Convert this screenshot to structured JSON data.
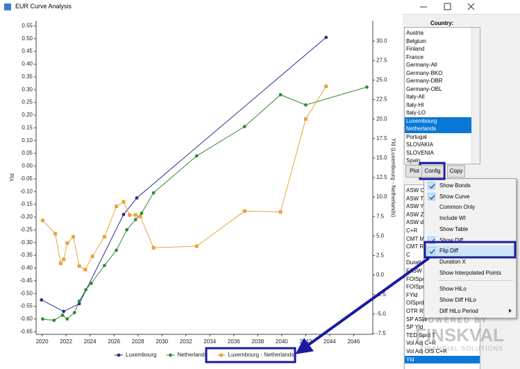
{
  "window": {
    "title": "EUR Curve Analysis"
  },
  "chart_data": {
    "type": "line",
    "ylabel": "Yld",
    "y2label": "Yld (Luxembourg - Netherlands)",
    "xlim": [
      2019.5,
      2047.6
    ],
    "xticks": [
      2020,
      2022,
      2024,
      2026,
      2028,
      2030,
      2032,
      2034,
      2036,
      2038,
      2040,
      2042,
      2044,
      2046
    ],
    "ylim": [
      -0.66,
      0.57
    ],
    "yticks": [
      {
        "value": 0.55,
        "label": "0.55"
      },
      {
        "value": 0.5,
        "label": "0.50"
      },
      {
        "value": 0.45,
        "label": "0.45"
      },
      {
        "value": 0.4,
        "label": "0.40"
      },
      {
        "value": 0.35,
        "label": "0.35"
      },
      {
        "value": 0.3,
        "label": "0.30"
      },
      {
        "value": 0.25,
        "label": "0.25"
      },
      {
        "value": 0.2,
        "label": "0.20"
      },
      {
        "value": 0.15,
        "label": "0.15"
      },
      {
        "value": 0.1,
        "label": "0.10"
      },
      {
        "value": 0.05,
        "label": "0.05"
      },
      {
        "value": 0,
        "label": "0.00"
      },
      {
        "value": -0.05,
        "label": "-0.05"
      },
      {
        "value": -0.1,
        "label": "-0.10"
      },
      {
        "value": -0.15,
        "label": "-0.15"
      },
      {
        "value": -0.2,
        "label": "-0.20"
      },
      {
        "value": -0.25,
        "label": "-0.25"
      },
      {
        "value": -0.3,
        "label": "-0.30"
      },
      {
        "value": -0.35,
        "label": "-0.35"
      },
      {
        "value": -0.4,
        "label": "-0.40"
      },
      {
        "value": -0.45,
        "label": "-0.45"
      },
      {
        "value": -0.5,
        "label": "-0.50"
      },
      {
        "value": -0.55,
        "label": "-0.55"
      },
      {
        "value": -0.6,
        "label": "-0.60"
      },
      {
        "value": -0.65,
        "label": "-0.65"
      }
    ],
    "y2lim": [
      -7.6,
      32.6
    ],
    "y2ticks": [
      {
        "value": 30,
        "label": "30.0"
      },
      {
        "value": 27.5,
        "label": "27.5"
      },
      {
        "value": 25,
        "label": "25.0"
      },
      {
        "value": 22.5,
        "label": "22.5"
      },
      {
        "value": 20,
        "label": "20.0"
      },
      {
        "value": 17.5,
        "label": "17.5"
      },
      {
        "value": 15,
        "label": "15.0"
      },
      {
        "value": 12.5,
        "label": "12.5"
      },
      {
        "value": 10,
        "label": "10.0"
      },
      {
        "value": 7.5,
        "label": "7.5"
      },
      {
        "value": 5,
        "label": "5.0"
      },
      {
        "value": 2.5,
        "label": "2.5"
      },
      {
        "value": 0,
        "label": "0.0"
      },
      {
        "value": -2.5,
        "label": "-2.5"
      },
      {
        "value": -5,
        "label": "-5.0"
      },
      {
        "value": -7.5,
        "label": "-7.5"
      }
    ],
    "grid": false,
    "legend": "bottom",
    "series": [
      {
        "name": "Luxembourg",
        "color": "#2b2b8c",
        "marker": "circle",
        "axis": "y",
        "x": [
          2019.95,
          2021.8,
          2023.1,
          2026.8,
          2027.9,
          2043.7
        ],
        "values": [
          -0.525,
          -0.57,
          -0.54,
          -0.19,
          -0.125,
          0.505
        ]
      },
      {
        "name": "Netherlands",
        "color": "#2e8b2e",
        "marker": "circle",
        "axis": "y",
        "x": [
          2020.05,
          2021.0,
          2021.7,
          2022.1,
          2022.7,
          2023.1,
          2023.65,
          2024.1,
          2025.2,
          2026.2,
          2027.07,
          2027.8,
          2028.3,
          2029.3,
          2032.9,
          2036.9,
          2039.9,
          2042.0,
          2047.1
        ],
        "values": [
          -0.6,
          -0.605,
          -0.585,
          -0.6,
          -0.575,
          -0.53,
          -0.485,
          -0.46,
          -0.39,
          -0.33,
          -0.25,
          -0.21,
          -0.185,
          -0.105,
          0.04,
          0.155,
          0.28,
          0.24,
          0.31
        ]
      },
      {
        "name": "Luxembourg - Netherlands",
        "color": "#e8a33c",
        "marker": "square",
        "axis": "y2",
        "x": [
          2020.05,
          2021.1,
          2021.55,
          2021.8,
          2022.1,
          2022.6,
          2023.1,
          2023.6,
          2024.2,
          2025.2,
          2026.2,
          2026.8,
          2027.3,
          2027.8,
          2028.2,
          2029.3,
          2032.9,
          2036.9,
          2039.9,
          2042.0,
          2043.7
        ],
        "values": [
          7.0,
          5.3,
          1.5,
          2.0,
          4.1,
          4.9,
          1.15,
          0.7,
          2.4,
          4.9,
          8.8,
          9.4,
          7.7,
          7.7,
          7.5,
          3.5,
          3.7,
          8.2,
          8.1,
          20.0,
          24.2
        ]
      }
    ]
  },
  "panel": {
    "country_label": "Country:",
    "countries": [
      {
        "label": "Austria"
      },
      {
        "label": "Belgium"
      },
      {
        "label": "Finland"
      },
      {
        "label": "France"
      },
      {
        "label": "Germany-All"
      },
      {
        "label": "Germany-BKO"
      },
      {
        "label": "Germany-DBR"
      },
      {
        "label": "Germany-OBL"
      },
      {
        "label": "Italy-All"
      },
      {
        "label": "Italy-HI"
      },
      {
        "label": "Italy-LO"
      },
      {
        "label": "Luxembourg",
        "selected": true
      },
      {
        "label": "Netherlands",
        "selected": true
      },
      {
        "label": "Portugal"
      },
      {
        "label": "SLOVAKIA"
      },
      {
        "label": "SLOVENIA"
      },
      {
        "label": "Spain"
      }
    ],
    "buttons": [
      "Plot",
      "Config",
      "Copy"
    ],
    "measures": [
      {
        "label": "ASW C"
      },
      {
        "label": "ASW T"
      },
      {
        "label": "ASW Y"
      },
      {
        "label": "ASW Z"
      },
      {
        "label": "ASW dz"
      },
      {
        "label": "C+R"
      },
      {
        "label": "CMT Mc"
      },
      {
        "label": "CMT R"
      },
      {
        "label": "C"
      },
      {
        "label": "Duratio"
      },
      {
        "label": "FASW 2"
      },
      {
        "label": "FOISpr"
      },
      {
        "label": "FOISpr"
      },
      {
        "label": "FYld"
      },
      {
        "label": "OISprd"
      },
      {
        "label": "OTR RV"
      },
      {
        "label": "SP ASW"
      },
      {
        "label": "SP Yld"
      },
      {
        "label": "TED Sprd T"
      },
      {
        "label": "Vol Adj C+R"
      },
      {
        "label": "Vol Adj OIS C+R"
      },
      {
        "label": "Yld",
        "selected": true
      }
    ]
  },
  "menu": [
    [
      {
        "label": "Show Bonds",
        "checked": true
      },
      {
        "label": "Show Curve",
        "checked": true
      },
      {
        "label": "Common Only"
      },
      {
        "label": "Include WI"
      },
      {
        "label": "Show Table"
      },
      {
        "label": "Show Diff",
        "checked": true
      },
      {
        "label": "Flip Diff",
        "checked": true,
        "highlighted": true
      },
      {
        "label": "Duration X"
      },
      {
        "label": "Show Interpolated Points"
      }
    ],
    [
      {
        "label": "Show HiLo"
      },
      {
        "label": "Show Diff HiLo"
      },
      {
        "label": "Diff HiLo Period",
        "submenu": true
      }
    ]
  ],
  "watermark": {
    "line1": "POWERED BY",
    "line2": "FINSKVAL",
    "line3": "FINANCIAL SOLUTIONS"
  }
}
